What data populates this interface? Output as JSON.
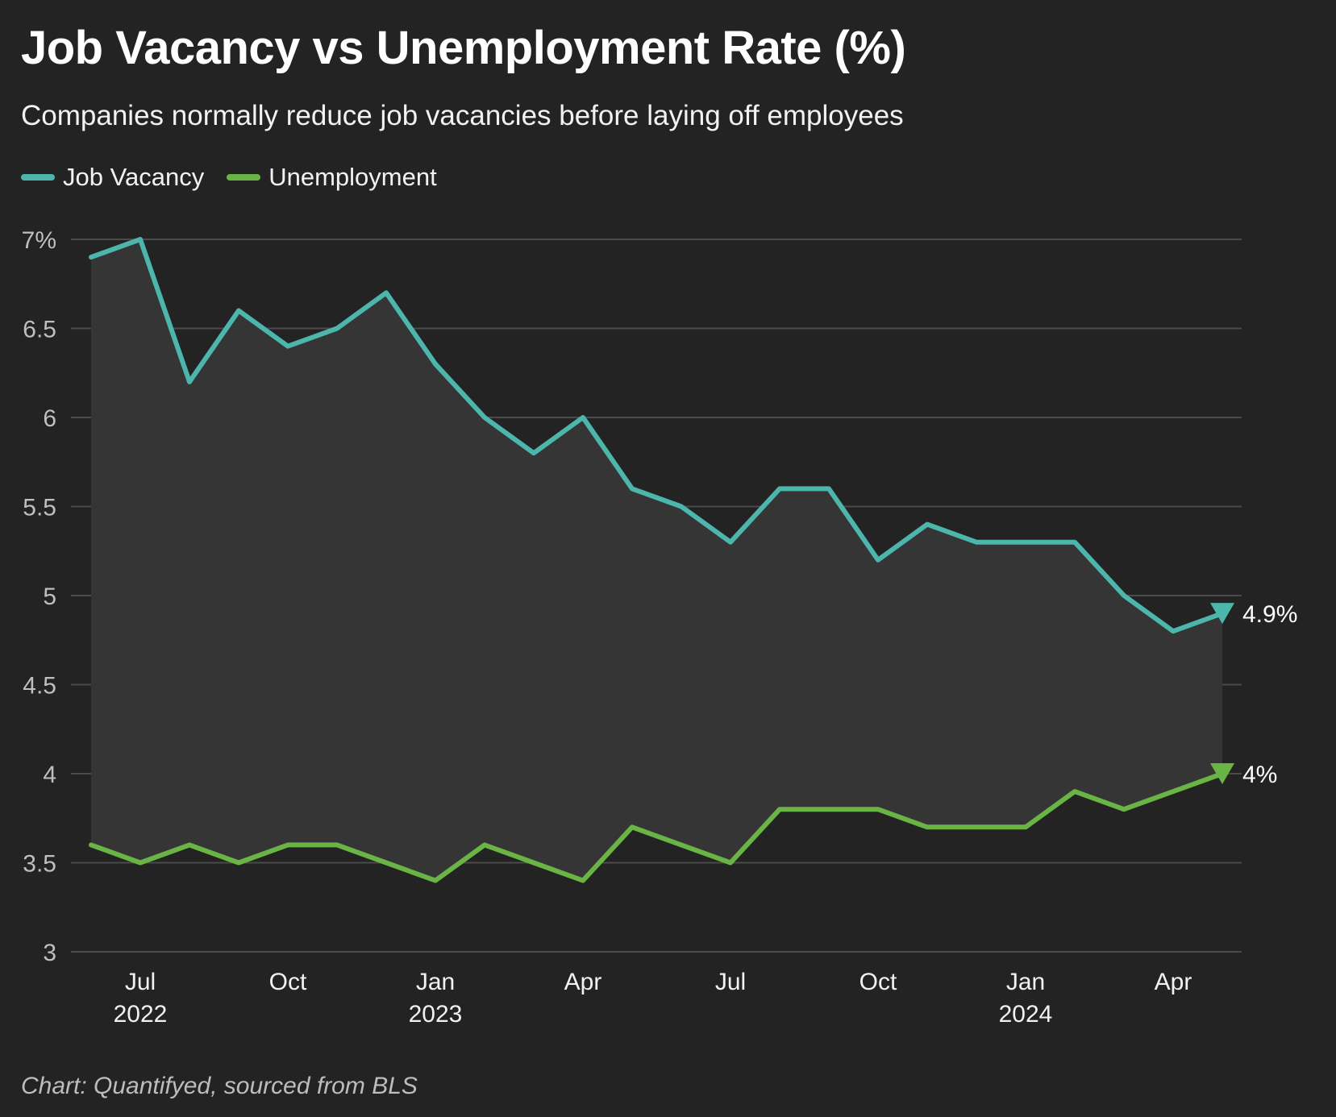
{
  "title": "Job Vacancy vs Unemployment Rate (%)",
  "subtitle": "Companies normally reduce job vacancies before laying off employees",
  "source": "Chart: Quantifyed, sourced from BLS",
  "legend": [
    {
      "label": "Job Vacancy",
      "color": "#4db6ac"
    },
    {
      "label": "Unemployment",
      "color": "#6ab446"
    }
  ],
  "chart_data": {
    "type": "line",
    "title": "Job Vacancy vs Unemployment Rate (%)",
    "subtitle": "Companies normally reduce job vacancies before laying off employees",
    "ylim": [
      3,
      7
    ],
    "y_ticks": [
      "3",
      "3.5",
      "4",
      "4.5",
      "5",
      "5.5",
      "6",
      "6.5",
      "7%"
    ],
    "x": [
      "2022-06",
      "2022-07",
      "2022-08",
      "2022-09",
      "2022-10",
      "2022-11",
      "2022-12",
      "2023-01",
      "2023-02",
      "2023-03",
      "2023-04",
      "2023-05",
      "2023-06",
      "2023-07",
      "2023-08",
      "2023-09",
      "2023-10",
      "2023-11",
      "2023-12",
      "2024-01",
      "2024-02",
      "2024-03",
      "2024-04",
      "2024-05"
    ],
    "x_ticks": [
      {
        "label": "Jul",
        "sub": "2022",
        "x": "2022-07"
      },
      {
        "label": "Oct",
        "sub": "",
        "x": "2022-10"
      },
      {
        "label": "Jan",
        "sub": "2023",
        "x": "2023-01"
      },
      {
        "label": "Apr",
        "sub": "",
        "x": "2023-04"
      },
      {
        "label": "Jul",
        "sub": "",
        "x": "2023-07"
      },
      {
        "label": "Oct",
        "sub": "",
        "x": "2023-10"
      },
      {
        "label": "Jan",
        "sub": "2024",
        "x": "2024-01"
      },
      {
        "label": "Apr",
        "sub": "",
        "x": "2024-04"
      }
    ],
    "series": [
      {
        "name": "Job Vacancy",
        "color": "#4db6ac",
        "end_label": "4.9%",
        "values": [
          6.9,
          7.0,
          6.2,
          6.6,
          6.4,
          6.5,
          6.7,
          6.3,
          6.0,
          5.8,
          6.0,
          5.6,
          5.5,
          5.3,
          5.6,
          5.6,
          5.2,
          5.4,
          5.3,
          5.3,
          5.3,
          5.0,
          4.8,
          4.9
        ]
      },
      {
        "name": "Unemployment",
        "color": "#6ab446",
        "end_label": "4%",
        "values": [
          3.6,
          3.5,
          3.6,
          3.5,
          3.6,
          3.6,
          3.5,
          3.4,
          3.6,
          3.5,
          3.4,
          3.7,
          3.6,
          3.5,
          3.8,
          3.8,
          3.8,
          3.7,
          3.7,
          3.7,
          3.9,
          3.8,
          3.9,
          4.0
        ]
      }
    ],
    "grid": true,
    "shaded_gap": true,
    "legend_position": "top-left"
  }
}
